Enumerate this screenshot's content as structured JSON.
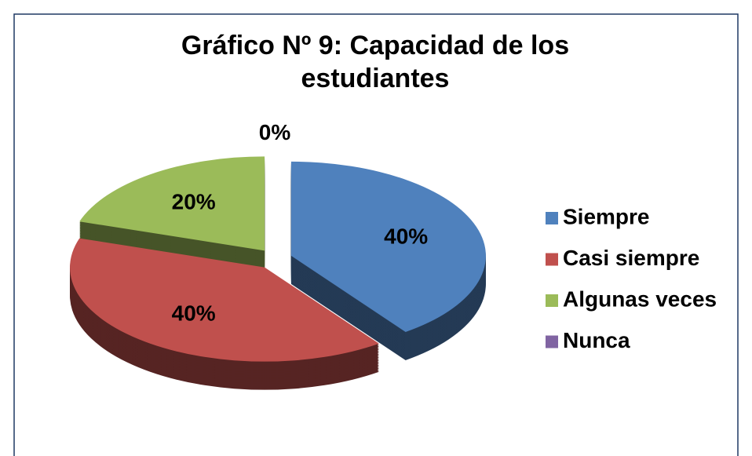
{
  "chart_data": {
    "type": "pie",
    "title": "Gráfico Nº 9: Capacidad de los estudiantes",
    "categories": [
      "Siempre",
      "Casi siempre",
      "Algunas veces",
      "Nunca"
    ],
    "values": [
      40,
      40,
      20,
      0
    ],
    "value_labels": [
      "40%",
      "40%",
      "20%",
      "0%"
    ],
    "colors": [
      "#4f81bd",
      "#c0504d",
      "#9bbb59",
      "#8064a2"
    ],
    "legend": "right"
  }
}
